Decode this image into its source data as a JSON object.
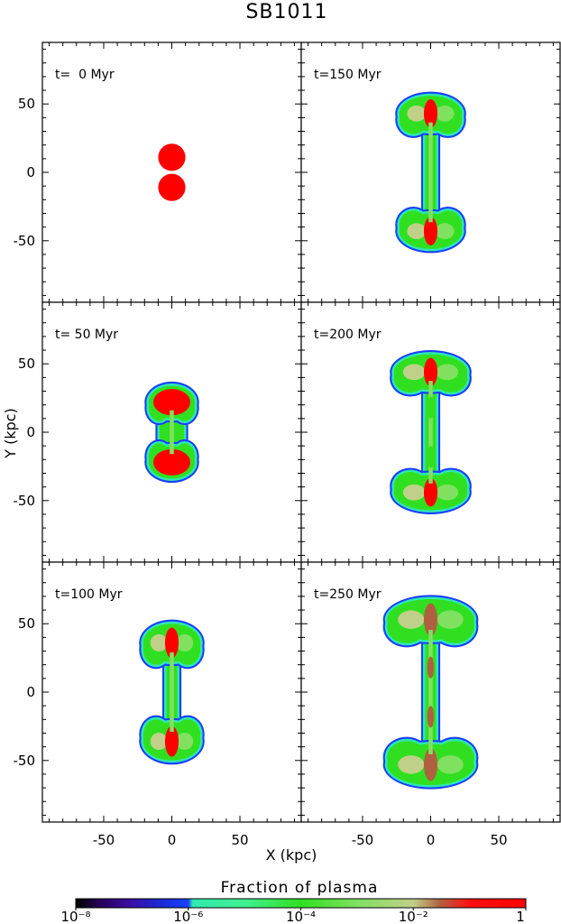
{
  "title": "SB1011",
  "chart_data": {
    "type": "heatmap",
    "title": "SB1011",
    "xlabel": "X (kpc)",
    "ylabel": "Y (kpc)",
    "xlim": [
      -95,
      95
    ],
    "ylim": [
      -95,
      95
    ],
    "xticks": [
      -50,
      0,
      50
    ],
    "yticks": [
      50,
      0,
      -50
    ],
    "grid": false,
    "panels": [
      {
        "label": "t=  0 Myr",
        "time_myr": 0,
        "morphology": "two-bubbles",
        "radius_kpc": 10,
        "bubble_centers_y": [
          11,
          -11
        ],
        "extent_y": [
          -21,
          21
        ]
      },
      {
        "label": "t=150 Myr",
        "time_myr": 150,
        "morphology": "lobes",
        "lobe_center_y": 43,
        "lobe_half_width": 23,
        "lobe_half_height": 13,
        "extent_y": [
          -57,
          57
        ]
      },
      {
        "label": "t= 50 Myr",
        "time_myr": 50,
        "morphology": "compact",
        "lobe_center_y": 22,
        "lobe_half_width": 17,
        "lobe_half_height": 12,
        "extent_y": [
          -35,
          35
        ]
      },
      {
        "label": "t=200 Myr",
        "time_myr": 200,
        "morphology": "lobes",
        "lobe_center_y": 44,
        "lobe_half_width": 27,
        "lobe_half_height": 13,
        "extent_y": [
          -57,
          57
        ]
      },
      {
        "label": "t=100 Myr",
        "time_myr": 100,
        "morphology": "lobes",
        "lobe_center_y": 36,
        "lobe_half_width": 21,
        "lobe_half_height": 14,
        "extent_y": [
          -50,
          50
        ]
      },
      {
        "label": "t=250 Myr",
        "time_myr": 250,
        "morphology": "lobes",
        "lobe_center_y": 53,
        "lobe_half_width": 32,
        "lobe_half_height": 15,
        "extent_y": [
          -62,
          62
        ]
      }
    ],
    "colorbar": {
      "label": "Fraction of plasma",
      "scale": "log",
      "range": [
        1e-08,
        1
      ],
      "tick_labels": [
        "10⁻⁸",
        "10⁻⁶",
        "10⁻⁴",
        "10⁻²",
        "1"
      ],
      "tick_values": [
        1e-08,
        1e-06,
        0.0001,
        0.01,
        1
      ],
      "stops": [
        {
          "value": 1e-08,
          "color": "#000000"
        },
        {
          "value": 3e-08,
          "color": "#2a0060"
        },
        {
          "value": 1e-07,
          "color": "#3a10a8"
        },
        {
          "value": 3e-07,
          "color": "#1c28d0"
        },
        {
          "value": 1e-06,
          "color": "#1840ff"
        },
        {
          "value": 1.2e-06,
          "color": "#30e8b0"
        },
        {
          "value": 1e-05,
          "color": "#40f090"
        },
        {
          "value": 0.0001,
          "color": "#30e020"
        },
        {
          "value": 0.001,
          "color": "#80e060"
        },
        {
          "value": 0.01,
          "color": "#c0d088"
        },
        {
          "value": 0.03,
          "color": "#b06040"
        },
        {
          "value": 0.1,
          "color": "#ff1010"
        },
        {
          "value": 1,
          "color": "#ff0000"
        }
      ]
    }
  }
}
